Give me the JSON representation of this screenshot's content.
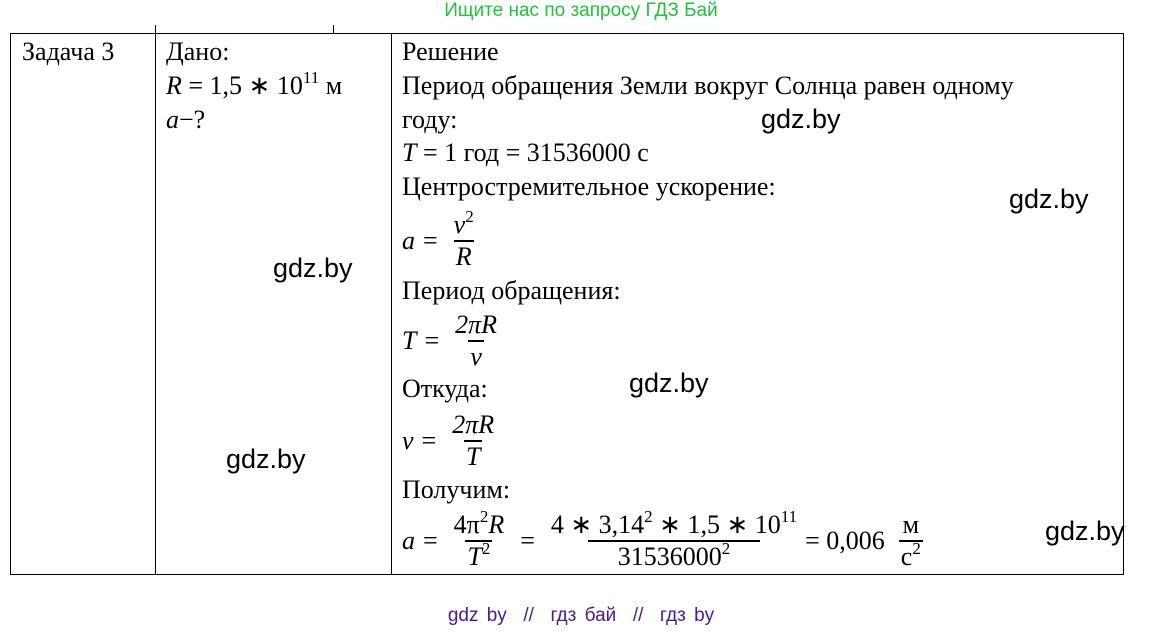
{
  "header": {
    "search_text": "Ищите нас по запросу ГДЗ Бай"
  },
  "task": {
    "label": "Задача 3"
  },
  "given": {
    "title": "Дано:",
    "r_lhs": "R",
    "r_eq": "= 1,5 ∗ 10",
    "r_exp": "11",
    "r_unit": " м",
    "find": "a",
    "find_rest": "−?"
  },
  "solution": {
    "title": "Решение",
    "line1": "Период обращения Земли вокруг Солнца равен одному",
    "line2": "году:",
    "line3_lhs": "T",
    "line3_rest": " = 1 год = 31536000 с",
    "line4": "Центростремительное ускорение:",
    "f1": {
      "lhs": "a",
      "num": "v",
      "num_exp": "2",
      "den": "R"
    },
    "line5": "Период обращения:",
    "f2": {
      "lhs": "T",
      "num": "2πR",
      "den": "v"
    },
    "line6": "Откуда:",
    "f3": {
      "lhs": "v",
      "num": "2πR",
      "den": "T"
    },
    "line7": "Получим:",
    "f4": {
      "lhs": "a",
      "num1": "4π",
      "num1_exp": "2",
      "num1_r": "R",
      "den1": "T",
      "den1_exp": "2",
      "num2": "4 ∗ 3,14",
      "num2_exp": "2",
      "num2_mid": " ∗ 1,5 ∗ 10",
      "num2_exp2": "11",
      "den2": "31536000",
      "den2_exp": "2",
      "result": "= 0,006",
      "unit_num": "м",
      "unit_den": "с",
      "unit_den_exp": "2"
    }
  },
  "watermarks": [
    "gdz.by",
    "gdz.by",
    "gdz.by",
    "gdz.by",
    "gdz.by",
    "gdz.by"
  ],
  "footer": {
    "text": "gdz by  //  гдз бай  //  гдз by"
  }
}
